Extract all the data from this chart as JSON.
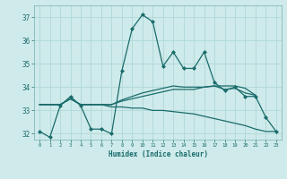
{
  "xlabel": "Humidex (Indice chaleur)",
  "bg_color": "#ceeaea",
  "grid_color": "#b0d8d8",
  "line_color": "#1a6b6b",
  "xlim": [
    -0.5,
    23.5
  ],
  "ylim": [
    31.75,
    37.5
  ],
  "yticks": [
    32,
    33,
    34,
    35,
    36,
    37
  ],
  "xticks": [
    0,
    1,
    2,
    3,
    4,
    5,
    6,
    7,
    8,
    9,
    10,
    11,
    12,
    13,
    14,
    15,
    16,
    17,
    18,
    19,
    20,
    21,
    22,
    23
  ],
  "series": [
    [
      32.1,
      31.85,
      33.2,
      33.6,
      33.2,
      32.2,
      32.2,
      32.0,
      34.7,
      36.5,
      37.1,
      36.8,
      34.9,
      35.5,
      34.8,
      34.8,
      35.5,
      34.2,
      33.85,
      34.0,
      33.6,
      33.6,
      32.7,
      32.1
    ],
    [
      33.25,
      33.25,
      33.25,
      33.5,
      33.25,
      33.25,
      33.25,
      33.25,
      33.4,
      33.5,
      33.6,
      33.7,
      33.8,
      33.9,
      33.9,
      33.9,
      34.0,
      34.05,
      34.05,
      34.05,
      33.95,
      33.65,
      null,
      null
    ],
    [
      33.25,
      33.25,
      33.25,
      33.5,
      33.25,
      33.25,
      33.25,
      33.15,
      33.15,
      33.1,
      33.1,
      33.0,
      33.0,
      32.95,
      32.9,
      32.85,
      32.75,
      32.65,
      32.55,
      32.45,
      32.35,
      32.2,
      32.1,
      32.1
    ],
    [
      33.25,
      33.25,
      33.25,
      33.5,
      33.25,
      33.25,
      33.25,
      33.25,
      33.45,
      33.6,
      33.75,
      33.85,
      33.95,
      34.05,
      34.0,
      34.0,
      34.0,
      34.05,
      33.9,
      33.95,
      33.75,
      33.65,
      null,
      null
    ]
  ]
}
